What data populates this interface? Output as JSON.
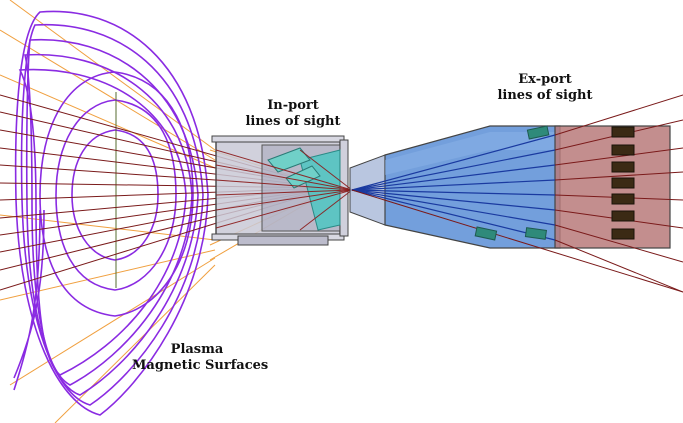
{
  "labels": {
    "inport_line1": "In-port",
    "inport_line2": "lines of sight",
    "export_line1": "Ex-port",
    "export_line2": "lines of sight",
    "plasma_line1": "Plasma",
    "plasma_line2": "Magnetic Surfaces"
  },
  "colors": {
    "flux_surface": "#8a2be2",
    "sightline_dark": "#7a1a1a",
    "sightline_orange": "#f0a040",
    "inport_housing": "#c9c9d6",
    "export_cone": "#5b8ed6",
    "export_detector_block": "#b97a7a",
    "detector": "#3b2a14",
    "optic_cyan": "#40c8c0"
  }
}
